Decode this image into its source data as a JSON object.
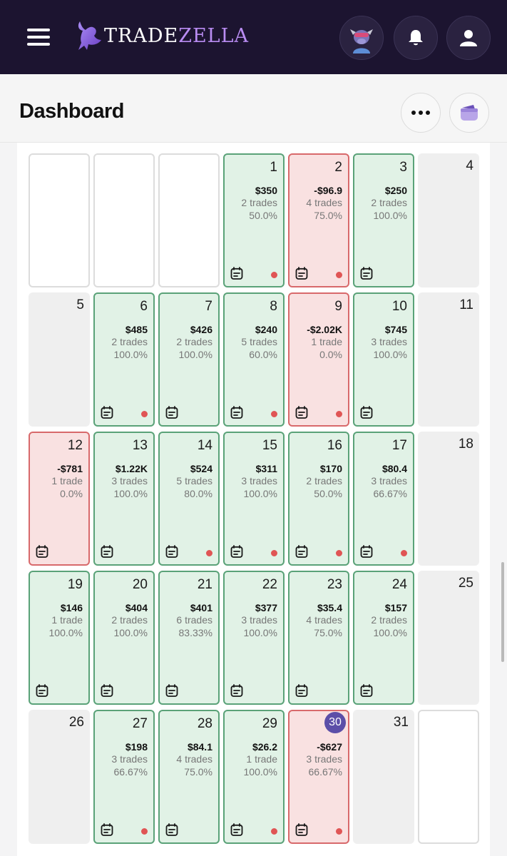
{
  "app": {
    "brand_a": "TRADE",
    "brand_b": "ZELLA"
  },
  "header": {
    "title": "Dashboard"
  },
  "colors": {
    "topbar": "#1c1430",
    "win_bg": "#e1f2e6",
    "win_border": "#5aa278",
    "loss_bg": "#f9e1e1",
    "loss_border": "#d8696b",
    "today": "#5c4ea8"
  },
  "calendar": {
    "cells": [
      {
        "type": "blank"
      },
      {
        "type": "blank"
      },
      {
        "type": "blank"
      },
      {
        "type": "win",
        "day": "1",
        "pnl": "$350",
        "trades": "2 trades",
        "rate": "50.0%",
        "dot": true
      },
      {
        "type": "loss",
        "day": "2",
        "pnl": "-$96.9",
        "trades": "4 trades",
        "rate": "75.0%",
        "dot": true
      },
      {
        "type": "win",
        "day": "3",
        "pnl": "$250",
        "trades": "2 trades",
        "rate": "100.0%",
        "dot": false
      },
      {
        "type": "weekend",
        "day": "4"
      },
      {
        "type": "weekend",
        "day": "5"
      },
      {
        "type": "win",
        "day": "6",
        "pnl": "$485",
        "trades": "2 trades",
        "rate": "100.0%",
        "dot": true
      },
      {
        "type": "win",
        "day": "7",
        "pnl": "$426",
        "trades": "2 trades",
        "rate": "100.0%",
        "dot": false
      },
      {
        "type": "win",
        "day": "8",
        "pnl": "$240",
        "trades": "5 trades",
        "rate": "60.0%",
        "dot": true
      },
      {
        "type": "loss",
        "day": "9",
        "pnl": "-$2.02K",
        "trades": "1 trade",
        "rate": "0.0%",
        "dot": true
      },
      {
        "type": "win",
        "day": "10",
        "pnl": "$745",
        "trades": "3 trades",
        "rate": "100.0%",
        "dot": false
      },
      {
        "type": "weekend",
        "day": "11"
      },
      {
        "type": "loss",
        "day": "12",
        "pnl": "-$781",
        "trades": "1 trade",
        "rate": "0.0%",
        "dot": false,
        "note": false
      },
      {
        "type": "win",
        "day": "13",
        "pnl": "$1.22K",
        "trades": "3 trades",
        "rate": "100.0%",
        "dot": false
      },
      {
        "type": "win",
        "day": "14",
        "pnl": "$524",
        "trades": "5 trades",
        "rate": "80.0%",
        "dot": true
      },
      {
        "type": "win",
        "day": "15",
        "pnl": "$311",
        "trades": "3 trades",
        "rate": "100.0%",
        "dot": true
      },
      {
        "type": "win",
        "day": "16",
        "pnl": "$170",
        "trades": "2 trades",
        "rate": "50.0%",
        "dot": true
      },
      {
        "type": "win",
        "day": "17",
        "pnl": "$80.4",
        "trades": "3 trades",
        "rate": "66.67%",
        "dot": true
      },
      {
        "type": "weekend",
        "day": "18"
      },
      {
        "type": "win",
        "day": "19",
        "pnl": "$146",
        "trades": "1 trade",
        "rate": "100.0%",
        "dot": false,
        "note": false
      },
      {
        "type": "win",
        "day": "20",
        "pnl": "$404",
        "trades": "2 trades",
        "rate": "100.0%",
        "dot": false
      },
      {
        "type": "win",
        "day": "21",
        "pnl": "$401",
        "trades": "6 trades",
        "rate": "83.33%",
        "dot": false
      },
      {
        "type": "win",
        "day": "22",
        "pnl": "$377",
        "trades": "3 trades",
        "rate": "100.0%",
        "dot": false
      },
      {
        "type": "win",
        "day": "23",
        "pnl": "$35.4",
        "trades": "4 trades",
        "rate": "75.0%",
        "dot": false
      },
      {
        "type": "win",
        "day": "24",
        "pnl": "$157",
        "trades": "2 trades",
        "rate": "100.0%",
        "dot": false
      },
      {
        "type": "weekend",
        "day": "25"
      },
      {
        "type": "weekend",
        "day": "26"
      },
      {
        "type": "win",
        "day": "27",
        "pnl": "$198",
        "trades": "3 trades",
        "rate": "66.67%",
        "dot": true
      },
      {
        "type": "win",
        "day": "28",
        "pnl": "$84.1",
        "trades": "4 trades",
        "rate": "75.0%",
        "dot": false
      },
      {
        "type": "win",
        "day": "29",
        "pnl": "$26.2",
        "trades": "1 trade",
        "rate": "100.0%",
        "dot": true
      },
      {
        "type": "loss",
        "day": "30",
        "pnl": "-$627",
        "trades": "3 trades",
        "rate": "66.67%",
        "dot": true,
        "today": true
      },
      {
        "type": "weekend",
        "day": "31"
      },
      {
        "type": "blank"
      }
    ]
  }
}
